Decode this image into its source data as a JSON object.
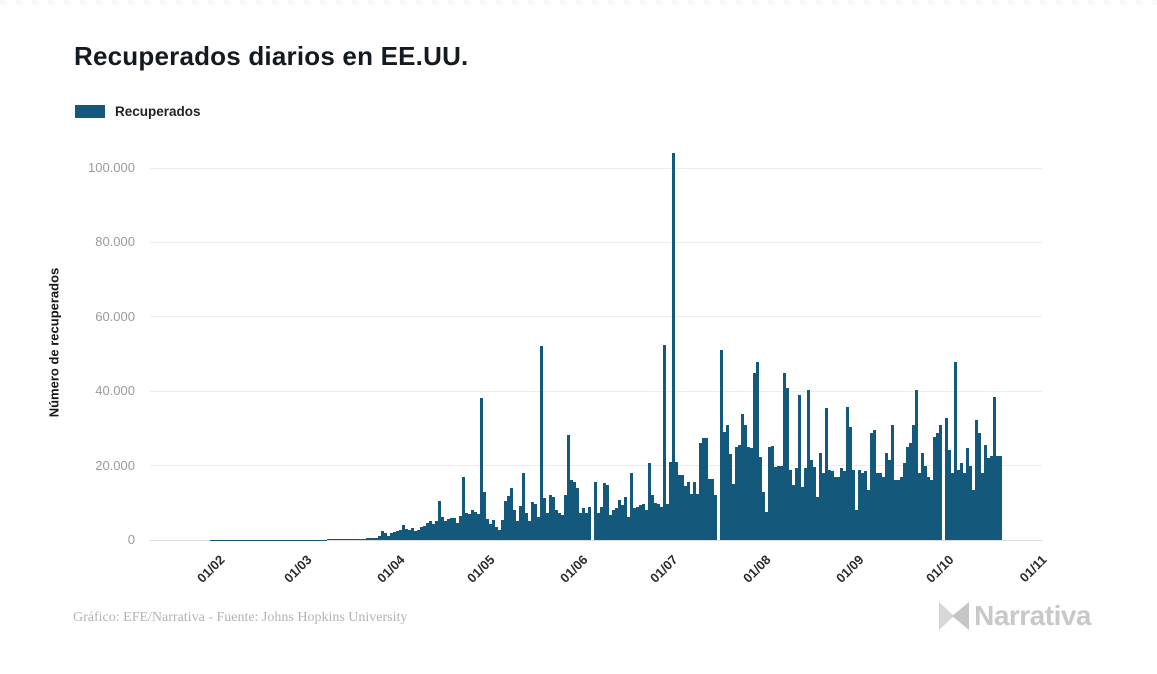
{
  "header": {
    "title": "Recuperados diarios en EE.UU."
  },
  "legend": {
    "label": "Recuperados",
    "color": "#14587c"
  },
  "footer": {
    "credit": "Gráfico: EFE/Narrativa - Fuente: Johns Hopkins University",
    "logo_text": "Narrativa"
  },
  "chart_data": {
    "type": "bar",
    "title": "Recuperados diarios en EE.UU.",
    "series_name": "Recuperados",
    "xlabel": "",
    "ylabel": "Número de recuperados",
    "bar_color": "#14587c",
    "grid": "horizontal",
    "legend_position": "top-left",
    "ylim": [
      0,
      104000
    ],
    "y_ticks": {
      "values": [
        0,
        20000,
        40000,
        60000,
        80000,
        100000
      ],
      "labels": [
        "0",
        "20.000",
        "40.000",
        "60.000",
        "80.000",
        "100.000"
      ]
    },
    "x_ticks": [
      {
        "label": "01/02",
        "day_offset": 10
      },
      {
        "label": "01/03",
        "day_offset": 39
      },
      {
        "label": "01/04",
        "day_offset": 70
      },
      {
        "label": "01/05",
        "day_offset": 100
      },
      {
        "label": "01/06",
        "day_offset": 131
      },
      {
        "label": "01/07",
        "day_offset": 161
      },
      {
        "label": "01/08",
        "day_offset": 192
      },
      {
        "label": "01/09",
        "day_offset": 223
      },
      {
        "label": "01/10",
        "day_offset": 253
      },
      {
        "label": "01/11",
        "day_offset": 284
      }
    ],
    "x_start": "22/01",
    "x_end": "17/10",
    "values_note": "one value per day, estimated from pixel heights",
    "values": [
      0,
      0,
      0,
      0,
      0,
      0,
      3,
      3,
      5,
      6,
      8,
      10,
      12,
      12,
      15,
      15,
      18,
      20,
      22,
      25,
      25,
      28,
      30,
      32,
      35,
      38,
      40,
      42,
      45,
      48,
      50,
      55,
      58,
      60,
      65,
      70,
      75,
      80,
      85,
      90,
      95,
      100,
      110,
      120,
      130,
      140,
      150,
      160,
      170,
      180,
      190,
      200,
      220,
      240,
      260,
      280,
      300,
      350,
      420,
      480,
      550,
      650,
      1200,
      2300,
      1800,
      1100,
      1900,
      2100,
      2400,
      2600,
      4000,
      3000,
      2700,
      3100,
      2400,
      2700,
      3400,
      3800,
      4600,
      5200,
      4400,
      5000,
      10400,
      6200,
      5200,
      5600,
      6000,
      5800,
      4600,
      6400,
      17000,
      7200,
      7000,
      8200,
      7600,
      7000,
      38300,
      13000,
      5600,
      4200,
      5500,
      3600,
      2600,
      5300,
      10500,
      11800,
      14000,
      8200,
      5200,
      9200,
      18000,
      7200,
      5200,
      10200,
      9600,
      6200,
      52100,
      11200,
      7200,
      12200,
      11600,
      8200,
      7200,
      6600,
      12200,
      28200,
      16200,
      15600,
      14000,
      7300,
      8500,
      7200,
      8900,
      0,
      15700,
      7200,
      8900,
      15200,
      14800,
      6700,
      8000,
      8500,
      10700,
      9400,
      11600,
      6300,
      17900,
      8500,
      8900,
      9400,
      9800,
      8000,
      20600,
      12000,
      10000,
      9800,
      9000,
      52300,
      9800,
      21000,
      104000,
      21000,
      17500,
      17500,
      14600,
      15500,
      12300,
      15500,
      12300,
      26000,
      27400,
      27400,
      16400,
      16400,
      12000,
      0,
      51100,
      29000,
      31000,
      23000,
      15000,
      25000,
      25500,
      34000,
      31000,
      25000,
      24800,
      44800,
      47900,
      22300,
      13000,
      7600,
      25100,
      25400,
      19700,
      20000,
      20000,
      44800,
      40800,
      18800,
      14800,
      19300,
      39000,
      14300,
      19300,
      40300,
      21500,
      19700,
      11500,
      23400,
      18000,
      35400,
      18800,
      18600,
      17000,
      17000,
      19300,
      18600,
      35800,
      30400,
      18800,
      8000,
      18800,
      18000,
      18600,
      13400,
      28700,
      29500,
      18000,
      18000,
      17000,
      23400,
      21500,
      30900,
      16000,
      16000,
      17000,
      20600,
      25000,
      26000,
      30900,
      40300,
      18000,
      23400,
      20000,
      17000,
      16000,
      27700,
      28700,
      30900,
      0,
      32800,
      24200,
      18000,
      47900,
      18800,
      20600,
      18000,
      24700,
      20000,
      13400,
      32200,
      28700,
      18000,
      25500,
      22000,
      22500,
      38400,
      22500,
      22500
    ]
  }
}
